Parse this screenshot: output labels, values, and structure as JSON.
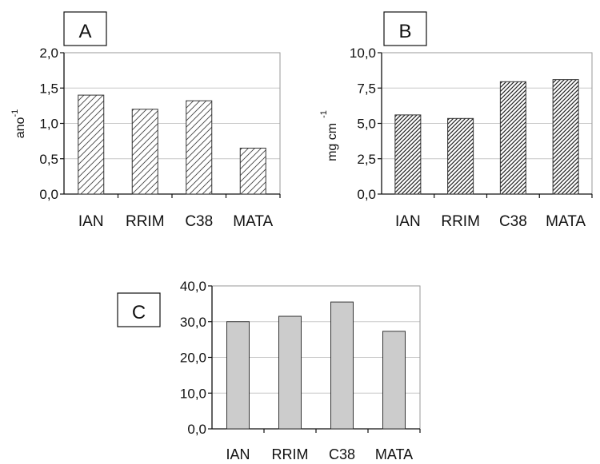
{
  "chart_data": [
    {
      "type": "bar",
      "panel": "A",
      "categories": [
        "IAN",
        "RRIM",
        "C38",
        "MATA"
      ],
      "values": [
        1.4,
        1.2,
        1.32,
        0.65
      ],
      "ylabel": "ano",
      "ylabel_sup": "-1",
      "ylim": [
        0,
        2
      ],
      "yticks": [
        "0,0",
        "0,5",
        "1,0",
        "1,5",
        "2,0"
      ],
      "grid": true,
      "fill": "light-hatch"
    },
    {
      "type": "bar",
      "panel": "B",
      "categories": [
        "IAN",
        "RRIM",
        "C38",
        "MATA"
      ],
      "values": [
        5.6,
        5.35,
        7.95,
        8.1
      ],
      "ylabel": "mg cm",
      "ylabel_sup": "-1",
      "ylim": [
        0,
        10
      ],
      "yticks": [
        "0,0",
        "2,5",
        "5,0",
        "7,5",
        "10,0"
      ],
      "grid": true,
      "fill": "dense-hatch"
    },
    {
      "type": "bar",
      "panel": "C",
      "categories": [
        "IAN",
        "RRIM",
        "C38",
        "MATA"
      ],
      "values": [
        30,
        31.5,
        35.5,
        27.3
      ],
      "ylabel": "",
      "ylim": [
        0,
        40
      ],
      "yticks": [
        "0,0",
        "10,0",
        "20,0",
        "30,0",
        "40,0"
      ],
      "grid": true,
      "fill": "#cccccc"
    }
  ]
}
